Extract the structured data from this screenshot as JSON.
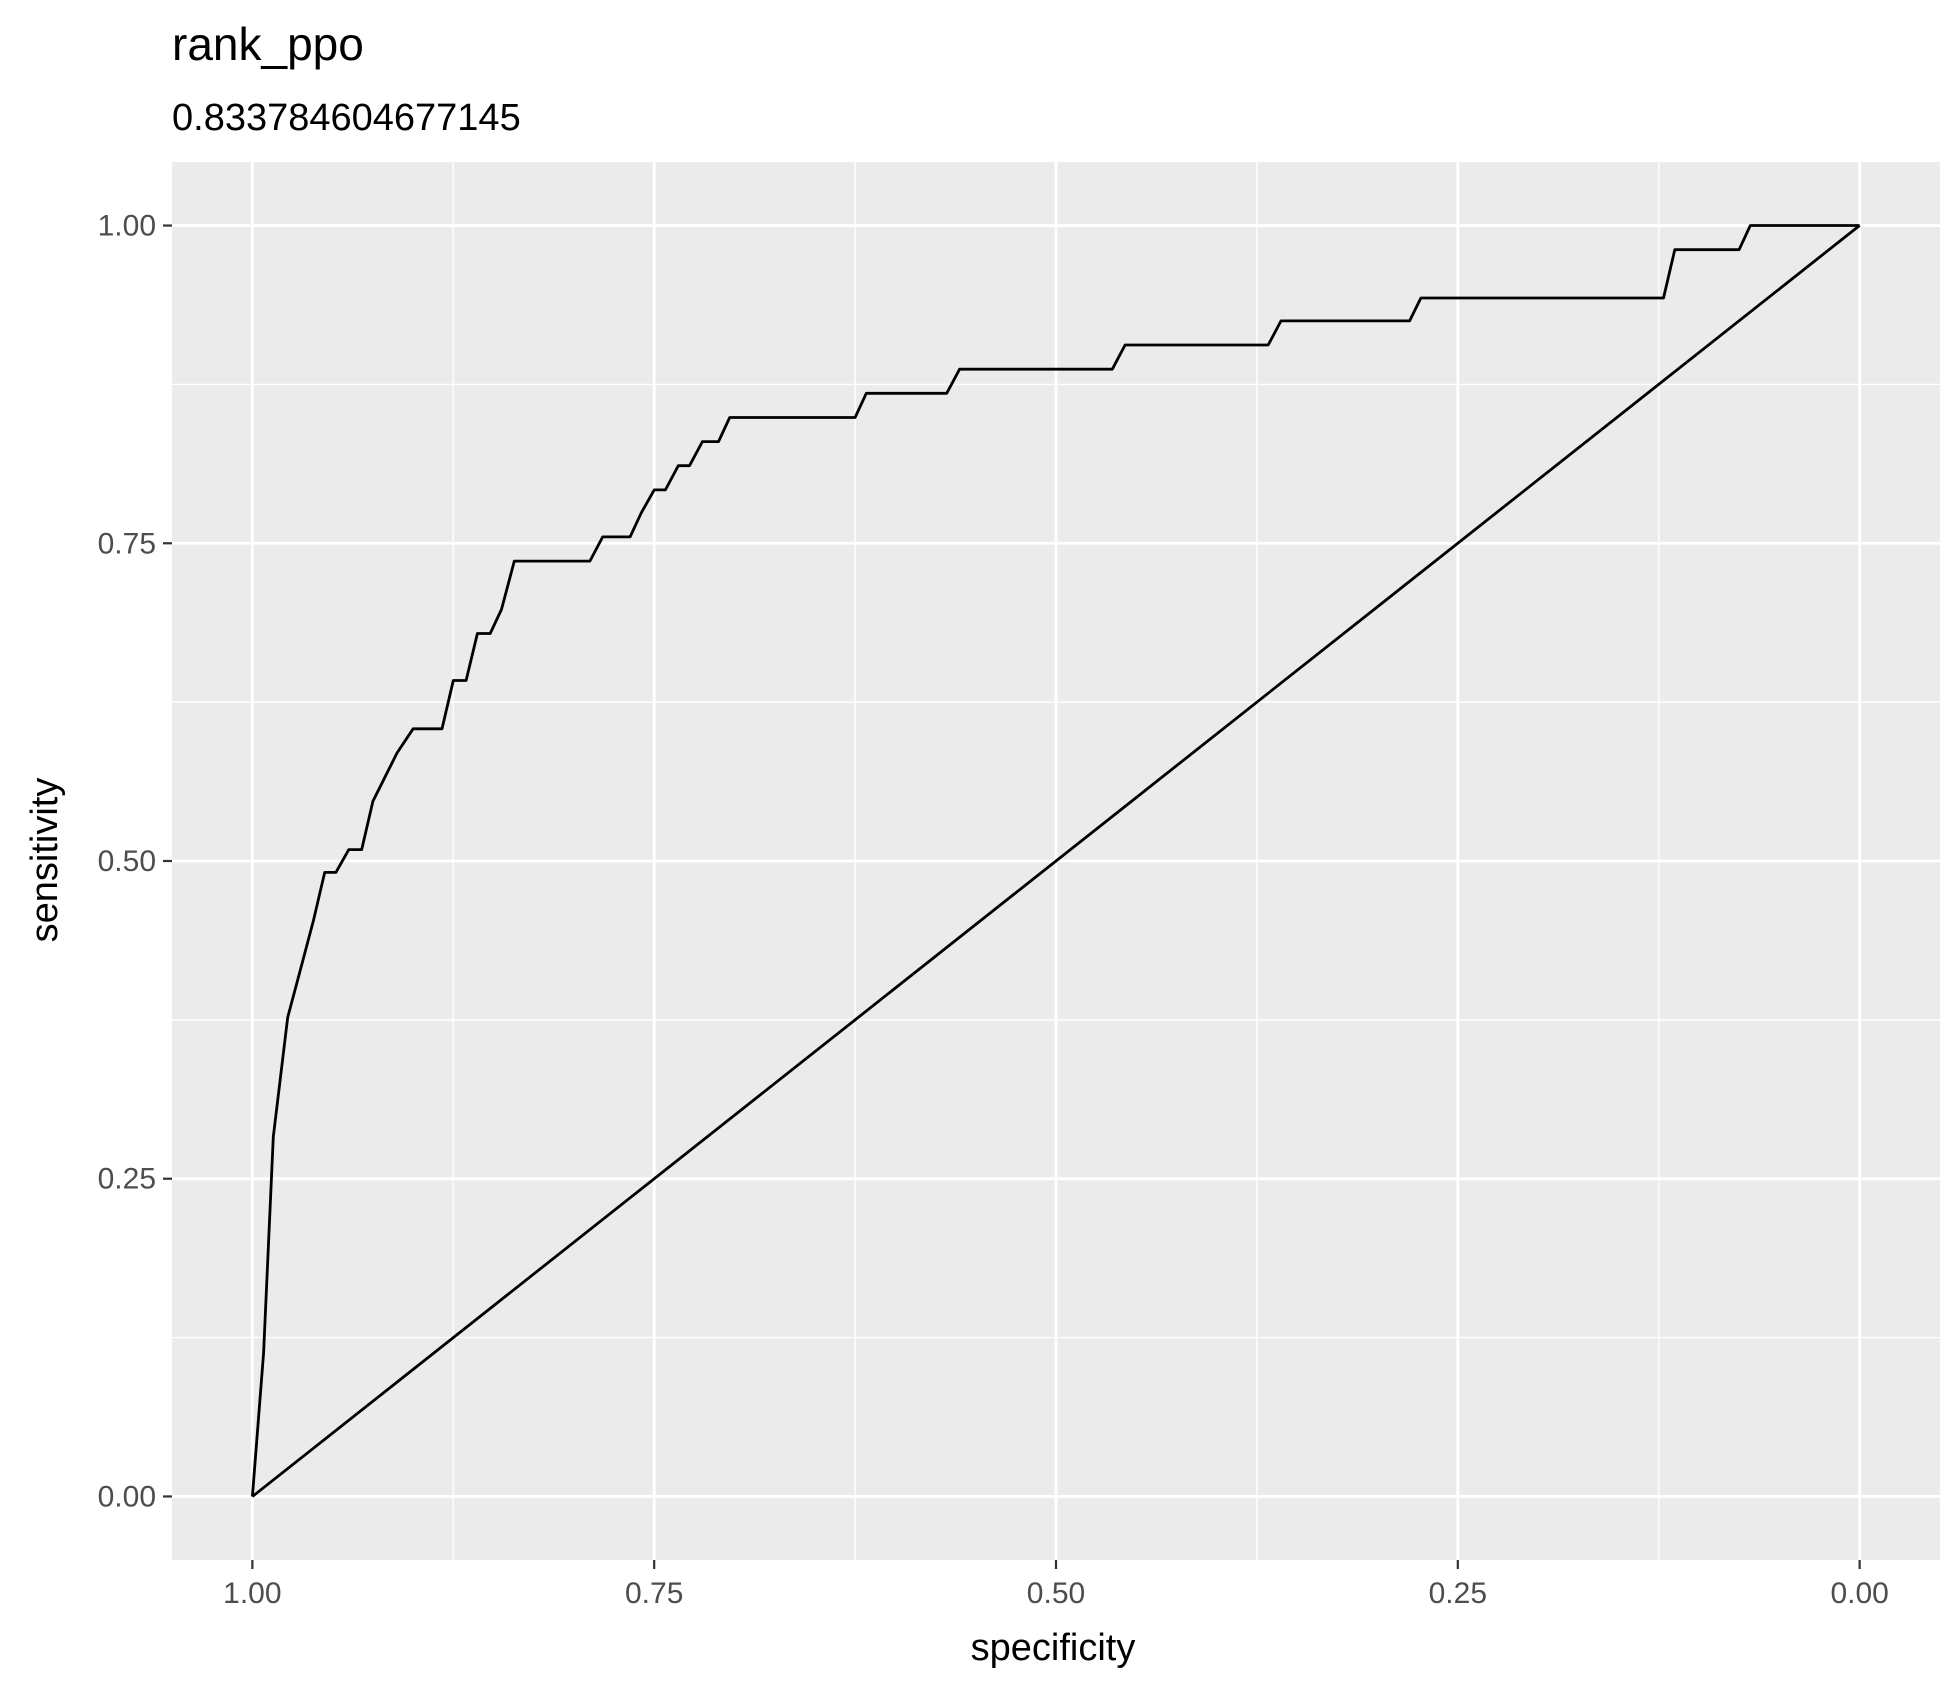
{
  "chart_data": {
    "type": "line",
    "title": "rank_ppo",
    "subtitle": "0.833784604677145",
    "xlabel": "specificity",
    "ylabel": "sensitivity",
    "x_reversed": true,
    "xlim": [
      1.05,
      -0.05
    ],
    "ylim": [
      -0.05,
      1.05
    ],
    "x_ticks": [
      1.0,
      0.75,
      0.5,
      0.25,
      0.0
    ],
    "x_tick_labels": [
      "1.00",
      "0.75",
      "0.50",
      "0.25",
      "0.00"
    ],
    "y_ticks": [
      0.0,
      0.25,
      0.5,
      0.75,
      1.0
    ],
    "y_tick_labels": [
      "0.00",
      "0.25",
      "0.50",
      "0.75",
      "1.00"
    ],
    "grid": true,
    "colors": {
      "panel_bg": "#ebebeb",
      "grid": "#ffffff",
      "line": "#000000"
    },
    "series": [
      {
        "points": [
          [
            1.0,
            0.0
          ],
          [
            0.993,
            0.113
          ],
          [
            0.987,
            0.283
          ],
          [
            0.978,
            0.377
          ],
          [
            0.97,
            0.415
          ],
          [
            0.962,
            0.453
          ],
          [
            0.955,
            0.491
          ],
          [
            0.948,
            0.491
          ],
          [
            0.94,
            0.509
          ],
          [
            0.932,
            0.509
          ],
          [
            0.925,
            0.547
          ],
          [
            0.91,
            0.585
          ],
          [
            0.9,
            0.604
          ],
          [
            0.882,
            0.604
          ],
          [
            0.875,
            0.642
          ],
          [
            0.867,
            0.642
          ],
          [
            0.86,
            0.679
          ],
          [
            0.852,
            0.679
          ],
          [
            0.845,
            0.698
          ],
          [
            0.837,
            0.736
          ],
          [
            0.79,
            0.736
          ],
          [
            0.782,
            0.755
          ],
          [
            0.765,
            0.755
          ],
          [
            0.758,
            0.774
          ],
          [
            0.75,
            0.792
          ],
          [
            0.743,
            0.792
          ],
          [
            0.735,
            0.811
          ],
          [
            0.728,
            0.811
          ],
          [
            0.72,
            0.83
          ],
          [
            0.71,
            0.83
          ],
          [
            0.703,
            0.849
          ],
          [
            0.625,
            0.849
          ],
          [
            0.618,
            0.868
          ],
          [
            0.568,
            0.868
          ],
          [
            0.56,
            0.887
          ],
          [
            0.465,
            0.887
          ],
          [
            0.457,
            0.906
          ],
          [
            0.368,
            0.906
          ],
          [
            0.36,
            0.925
          ],
          [
            0.28,
            0.925
          ],
          [
            0.273,
            0.943
          ],
          [
            0.122,
            0.943
          ],
          [
            0.115,
            0.981
          ],
          [
            0.075,
            0.981
          ],
          [
            0.068,
            1.0
          ],
          [
            0.0,
            1.0
          ]
        ]
      },
      {
        "points": [
          [
            1.0,
            0.0
          ],
          [
            0.0,
            1.0
          ]
        ]
      }
    ]
  }
}
